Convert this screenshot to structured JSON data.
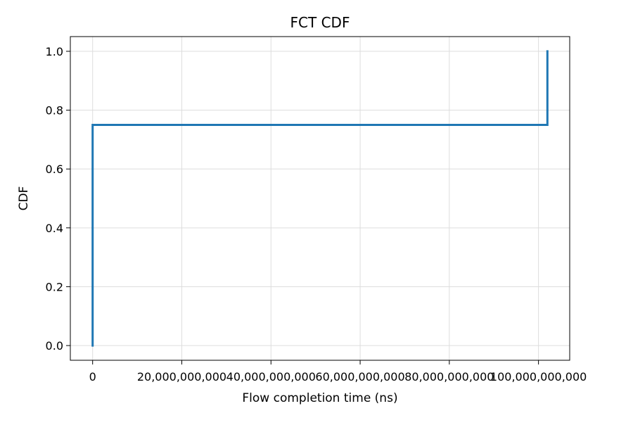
{
  "chart_data": {
    "type": "line",
    "title": "FCT CDF",
    "xlabel": "Flow completion time (ns)",
    "ylabel": "CDF",
    "xlim": [
      -5000000000,
      107000000000
    ],
    "ylim": [
      -0.05,
      1.05
    ],
    "x_ticks": [
      0,
      20000000000,
      40000000000,
      60000000000,
      80000000000,
      100000000000
    ],
    "x_tick_labels": [
      "0",
      "20,000,000,000",
      "40,000,000,000",
      "60,000,000,000",
      "80,000,000,000",
      "100,000,000,000"
    ],
    "y_ticks": [
      0.0,
      0.2,
      0.4,
      0.6,
      0.8,
      1.0
    ],
    "y_tick_labels": [
      "0.0",
      "0.2",
      "0.4",
      "0.6",
      "0.8",
      "1.0"
    ],
    "grid": true,
    "legend": "none",
    "step": "post",
    "series": [
      {
        "color": "#1f77b4",
        "x": [
          0,
          0,
          102000000000,
          102000000000
        ],
        "y": [
          0.0,
          0.75,
          0.75,
          1.0
        ]
      }
    ]
  }
}
